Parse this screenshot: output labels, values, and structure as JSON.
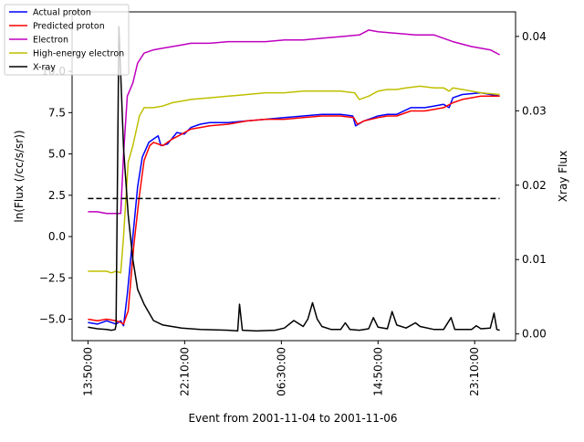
{
  "chart_data": {
    "type": "line",
    "xlabel": "Event from 2001-11-04 to 2001-11-06",
    "ylabel": "ln(Flux (/cc/s/sr))",
    "y2label": "Xray Flux",
    "x_unit": "hours since first sample",
    "xlim": [
      -1.7,
      45.7
    ],
    "ylim": [
      -6.3,
      13.6
    ],
    "y2lim": [
      -0.0009,
      0.0433
    ],
    "x_ticks": [
      {
        "x": 0,
        "label": "13:50:00"
      },
      {
        "x": 10.33,
        "label": "22:10:00"
      },
      {
        "x": 20.67,
        "label": "06:30:00"
      },
      {
        "x": 31,
        "label": "14:50:00"
      },
      {
        "x": 41.33,
        "label": "23:10:00"
      }
    ],
    "y_ticks": [
      {
        "v": -5.0,
        "label": "−5.0"
      },
      {
        "v": -2.5,
        "label": "−2.5"
      },
      {
        "v": 0.0,
        "label": "0.0"
      },
      {
        "v": 2.5,
        "label": "2.5"
      },
      {
        "v": 5.0,
        "label": "5.0"
      },
      {
        "v": 7.5,
        "label": "7.5"
      },
      {
        "v": 10.0,
        "label": "10.0"
      }
    ],
    "y2_ticks": [
      {
        "v": 0.0,
        "label": "0.00"
      },
      {
        "v": 0.01,
        "label": "0.01"
      },
      {
        "v": 0.02,
        "label": "0.02"
      },
      {
        "v": 0.03,
        "label": "0.03"
      },
      {
        "v": 0.04,
        "label": "0.04"
      }
    ],
    "legend": {
      "placement": "upper-left",
      "entries": [
        {
          "label": "Actual proton",
          "color": "#0000ff"
        },
        {
          "label": "Predicted proton",
          "color": "#ff0000"
        },
        {
          "label": "Electron",
          "color": "#bf00bf"
        },
        {
          "label": "High-energy electron",
          "color": "#bfbf00"
        },
        {
          "label": "X-ray",
          "color": "#000000"
        }
      ]
    },
    "threshold": {
      "y": 2.3,
      "x": [
        0,
        44
      ],
      "style": "dashed",
      "color": "#000000"
    },
    "series": [
      {
        "name": "Actual proton",
        "axis": "left",
        "color": "#0000ff",
        "points": [
          [
            0,
            -5.2
          ],
          [
            1,
            -5.3
          ],
          [
            2,
            -5.1
          ],
          [
            3,
            -5.3
          ],
          [
            3.5,
            -5.1
          ],
          [
            3.8,
            -5.4
          ],
          [
            4.2,
            -3.5
          ],
          [
            4.8,
            0
          ],
          [
            5.3,
            3
          ],
          [
            5.8,
            4.8
          ],
          [
            6.5,
            5.7
          ],
          [
            7,
            5.9
          ],
          [
            7.5,
            6.1
          ],
          [
            7.8,
            5.5
          ],
          [
            8.5,
            5.6
          ],
          [
            9.5,
            6.3
          ],
          [
            10.3,
            6.2
          ],
          [
            11,
            6.6
          ],
          [
            12,
            6.8
          ],
          [
            13,
            6.9
          ],
          [
            14,
            6.9
          ],
          [
            15,
            6.9
          ],
          [
            17,
            7.0
          ],
          [
            19,
            7.1
          ],
          [
            21,
            7.2
          ],
          [
            23,
            7.3
          ],
          [
            25,
            7.4
          ],
          [
            27,
            7.4
          ],
          [
            28.3,
            7.3
          ],
          [
            28.6,
            6.7
          ],
          [
            29.5,
            7.0
          ],
          [
            31,
            7.3
          ],
          [
            32,
            7.4
          ],
          [
            33,
            7.4
          ],
          [
            34.5,
            7.8
          ],
          [
            36,
            7.8
          ],
          [
            37,
            7.9
          ],
          [
            38,
            8.0
          ],
          [
            38.6,
            7.8
          ],
          [
            39,
            8.4
          ],
          [
            40,
            8.6
          ],
          [
            42,
            8.7
          ],
          [
            44,
            8.5
          ]
        ]
      },
      {
        "name": "Predicted proton",
        "axis": "left",
        "color": "#ff0000",
        "points": [
          [
            0,
            -5.0
          ],
          [
            1,
            -5.1
          ],
          [
            2,
            -5.0
          ],
          [
            3,
            -5.1
          ],
          [
            3.5,
            -5.2
          ],
          [
            3.8,
            -5.3
          ],
          [
            4.3,
            -4.5
          ],
          [
            4.9,
            -0.5
          ],
          [
            5.5,
            2.5
          ],
          [
            6,
            4.6
          ],
          [
            6.6,
            5.5
          ],
          [
            7,
            5.7
          ],
          [
            8,
            5.5
          ],
          [
            9,
            5.9
          ],
          [
            10,
            6.2
          ],
          [
            11,
            6.5
          ],
          [
            12,
            6.6
          ],
          [
            13,
            6.7
          ],
          [
            15,
            6.8
          ],
          [
            17,
            7.0
          ],
          [
            19,
            7.1
          ],
          [
            21,
            7.1
          ],
          [
            23,
            7.2
          ],
          [
            25,
            7.3
          ],
          [
            27,
            7.3
          ],
          [
            28.4,
            7.2
          ],
          [
            28.8,
            6.8
          ],
          [
            29.5,
            7.0
          ],
          [
            31,
            7.2
          ],
          [
            32,
            7.3
          ],
          [
            33,
            7.3
          ],
          [
            34.5,
            7.6
          ],
          [
            36,
            7.6
          ],
          [
            37,
            7.7
          ],
          [
            38,
            7.8
          ],
          [
            39,
            8.1
          ],
          [
            40,
            8.3
          ],
          [
            42,
            8.5
          ],
          [
            44,
            8.5
          ]
        ]
      },
      {
        "name": "Electron",
        "axis": "left",
        "color": "#bf00bf",
        "points": [
          [
            0,
            1.5
          ],
          [
            1,
            1.5
          ],
          [
            2,
            1.4
          ],
          [
            3,
            1.4
          ],
          [
            3.5,
            1.4
          ],
          [
            3.8,
            5
          ],
          [
            4.2,
            8.5
          ],
          [
            4.8,
            9.3
          ],
          [
            5.3,
            10.5
          ],
          [
            6,
            11.1
          ],
          [
            7,
            11.3
          ],
          [
            8,
            11.4
          ],
          [
            9,
            11.5
          ],
          [
            10,
            11.6
          ],
          [
            11,
            11.7
          ],
          [
            13,
            11.7
          ],
          [
            15,
            11.8
          ],
          [
            17,
            11.8
          ],
          [
            19,
            11.8
          ],
          [
            21,
            11.9
          ],
          [
            23,
            11.9
          ],
          [
            25,
            12.0
          ],
          [
            27,
            12.1
          ],
          [
            29,
            12.2
          ],
          [
            30,
            12.5
          ],
          [
            31,
            12.4
          ],
          [
            33,
            12.3
          ],
          [
            35,
            12.2
          ],
          [
            37,
            12.2
          ],
          [
            39,
            11.8
          ],
          [
            41,
            11.5
          ],
          [
            43,
            11.3
          ],
          [
            44,
            11.0
          ]
        ]
      },
      {
        "name": "High-energy electron",
        "axis": "left",
        "color": "#bfbf00",
        "points": [
          [
            0,
            -2.1
          ],
          [
            1,
            -2.1
          ],
          [
            2,
            -2.1
          ],
          [
            2.5,
            -2.2
          ],
          [
            3,
            -2.1
          ],
          [
            3.5,
            -2.2
          ],
          [
            3.8,
            0
          ],
          [
            4.3,
            4.5
          ],
          [
            4.8,
            5.5
          ],
          [
            5.5,
            7.3
          ],
          [
            6,
            7.8
          ],
          [
            7,
            7.8
          ],
          [
            8,
            7.9
          ],
          [
            9,
            8.1
          ],
          [
            10,
            8.2
          ],
          [
            11,
            8.3
          ],
          [
            13,
            8.4
          ],
          [
            15,
            8.5
          ],
          [
            17,
            8.6
          ],
          [
            19,
            8.7
          ],
          [
            21,
            8.7
          ],
          [
            23,
            8.8
          ],
          [
            25,
            8.8
          ],
          [
            27,
            8.8
          ],
          [
            28.5,
            8.7
          ],
          [
            29,
            8.3
          ],
          [
            30,
            8.5
          ],
          [
            31,
            8.8
          ],
          [
            32,
            8.9
          ],
          [
            33,
            8.9
          ],
          [
            34,
            9.0
          ],
          [
            35.5,
            9.1
          ],
          [
            37,
            9.0
          ],
          [
            38,
            9.0
          ],
          [
            38.6,
            8.8
          ],
          [
            39,
            9.0
          ],
          [
            40,
            8.9
          ],
          [
            42,
            8.7
          ],
          [
            44,
            8.6
          ]
        ]
      },
      {
        "name": "X-ray",
        "axis": "right",
        "color": "#000000",
        "points": [
          [
            0,
            0.0009
          ],
          [
            1,
            0.0007
          ],
          [
            2,
            0.0006
          ],
          [
            2.5,
            0.0005
          ],
          [
            2.9,
            0.0006
          ],
          [
            3.0,
            0.0012
          ],
          [
            3.3,
            0.0413
          ],
          [
            3.8,
            0.025
          ],
          [
            4.3,
            0.016
          ],
          [
            4.8,
            0.01
          ],
          [
            5.3,
            0.006
          ],
          [
            6,
            0.004
          ],
          [
            7,
            0.0018
          ],
          [
            8,
            0.0012
          ],
          [
            10,
            0.0008
          ],
          [
            12,
            0.0006
          ],
          [
            15,
            0.0005
          ],
          [
            16,
            0.0004
          ],
          [
            16.2,
            0.004
          ],
          [
            16.5,
            0.0005
          ],
          [
            18,
            0.0004
          ],
          [
            20,
            0.0005
          ],
          [
            21,
            0.0008
          ],
          [
            22,
            0.0018
          ],
          [
            23,
            0.001
          ],
          [
            23.5,
            0.002
          ],
          [
            24,
            0.0042
          ],
          [
            24.5,
            0.002
          ],
          [
            25,
            0.001
          ],
          [
            26,
            0.0006
          ],
          [
            27,
            0.0006
          ],
          [
            27.5,
            0.0015
          ],
          [
            28,
            0.0006
          ],
          [
            29,
            0.0005
          ],
          [
            30,
            0.0007
          ],
          [
            30.5,
            0.0022
          ],
          [
            31,
            0.0009
          ],
          [
            32,
            0.0007
          ],
          [
            32.5,
            0.003
          ],
          [
            33,
            0.0012
          ],
          [
            34,
            0.0008
          ],
          [
            35,
            0.0015
          ],
          [
            35.5,
            0.001
          ],
          [
            37,
            0.0006
          ],
          [
            38,
            0.0006
          ],
          [
            38.8,
            0.0022
          ],
          [
            39.2,
            0.0006
          ],
          [
            40,
            0.0006
          ],
          [
            41,
            0.0006
          ],
          [
            41.5,
            0.0011
          ],
          [
            42,
            0.0007
          ],
          [
            43,
            0.0008
          ],
          [
            43.4,
            0.0028
          ],
          [
            43.7,
            0.0006
          ],
          [
            44,
            0.0005
          ]
        ]
      }
    ]
  }
}
